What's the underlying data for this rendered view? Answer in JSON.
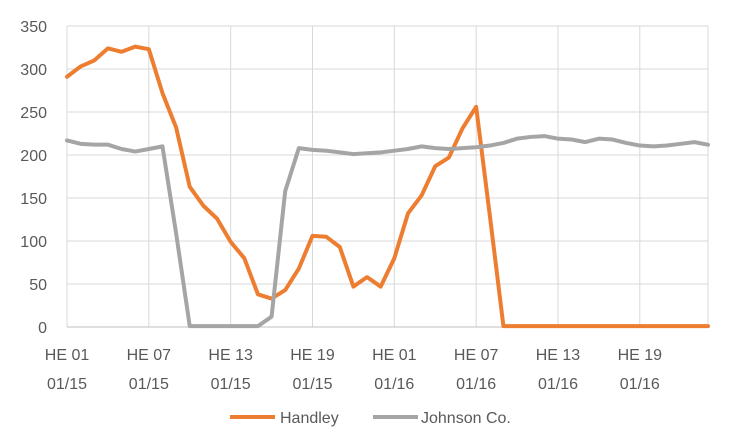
{
  "chart_data": {
    "type": "line",
    "ylim": [
      0,
      350
    ],
    "y_ticks": [
      0,
      50,
      100,
      150,
      200,
      250,
      300,
      350
    ],
    "grid": true,
    "legend_position": "bottom",
    "x_tick_labels": [
      {
        "index": 0,
        "line1": "HE 01",
        "line2": "01/15"
      },
      {
        "index": 6,
        "line1": "HE 07",
        "line2": "01/15"
      },
      {
        "index": 12,
        "line1": "HE 13",
        "line2": "01/15"
      },
      {
        "index": 18,
        "line1": "HE 19",
        "line2": "01/15"
      },
      {
        "index": 24,
        "line1": "HE 01",
        "line2": "01/16"
      },
      {
        "index": 30,
        "line1": "HE 07",
        "line2": "01/16"
      },
      {
        "index": 36,
        "line1": "HE 13",
        "line2": "01/16"
      },
      {
        "index": 42,
        "line1": "HE 19",
        "line2": "01/16"
      }
    ],
    "series": [
      {
        "name": "Handley",
        "color": "#ED7D31",
        "values": [
          291,
          303,
          310,
          324,
          320,
          326,
          323,
          272,
          232,
          163,
          141,
          126,
          99,
          80,
          38,
          33,
          43,
          68,
          106,
          105,
          93,
          47,
          58,
          47,
          80,
          132,
          153,
          187,
          197,
          231,
          256,
          130,
          1,
          1,
          1,
          1,
          1,
          1,
          1,
          1,
          1,
          1,
          1,
          1,
          1,
          1,
          1,
          1
        ]
      },
      {
        "name": "Johnson Co.",
        "color": "#A5A5A5",
        "values": [
          217,
          213,
          212,
          212,
          207,
          204,
          207,
          210,
          109,
          1,
          1,
          1,
          1,
          1,
          1,
          12,
          158,
          208,
          206,
          205,
          203,
          201,
          202,
          203,
          205,
          207,
          210,
          208,
          207,
          208,
          209,
          211,
          214,
          219,
          221,
          222,
          219,
          218,
          215,
          219,
          218,
          214,
          211,
          210,
          211,
          213,
          215,
          212
        ]
      }
    ]
  }
}
